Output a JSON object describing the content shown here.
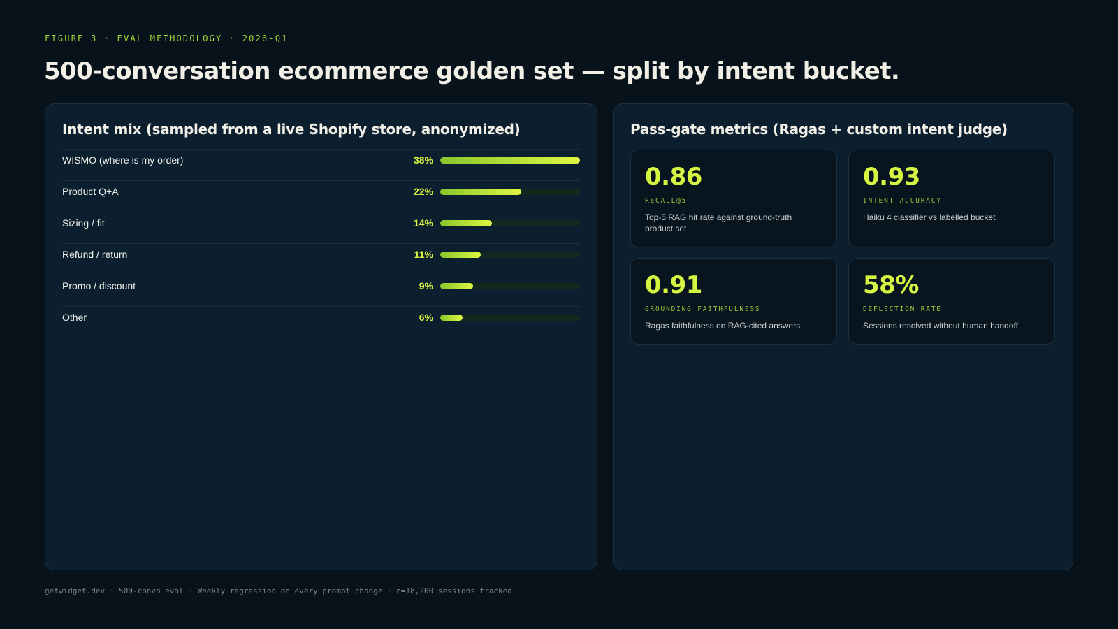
{
  "eyebrow": "FIGURE 3 · EVAL METHODOLOGY · 2026-Q1",
  "headline": "500-conversation ecommerce golden set — split by intent bucket.",
  "intent_panel": {
    "title": "Intent mix (sampled from a live Shopify store, anonymized)",
    "items": [
      {
        "label": "WISMO (where is my order)",
        "pct_text": "38%",
        "share": 0.38
      },
      {
        "label": "Product Q+A",
        "pct_text": "22%",
        "share": 0.22
      },
      {
        "label": "Sizing / fit",
        "pct_text": "14%",
        "share": 0.14
      },
      {
        "label": "Refund / return",
        "pct_text": "11%",
        "share": 0.11
      },
      {
        "label": "Promo / discount",
        "pct_text": "9%",
        "share": 0.09
      },
      {
        "label": "Other",
        "pct_text": "6%",
        "share": 0.06
      }
    ]
  },
  "metrics_panel": {
    "title": "Pass-gate metrics (Ragas + custom intent judge)",
    "cards": [
      {
        "value": "0.86",
        "label": "RECALL@5",
        "description": "Top-5 RAG hit rate against ground-truth product set"
      },
      {
        "value": "0.93",
        "label": "INTENT ACCURACY",
        "description": "Haiku 4 classifier vs labelled bucket"
      },
      {
        "value": "0.91",
        "label": "GROUNDING FAITHFULNESS",
        "description": "Ragas faithfulness on RAG-cited answers"
      },
      {
        "value": "58%",
        "label": "DEFLECTION RATE",
        "description": "Sessions resolved without human handoff"
      }
    ]
  },
  "footer": "getwidget.dev · 500-convo eval · Weekly regression on every prompt change · n=18,200 sessions tracked",
  "colors": {
    "background": "#08121b",
    "panel": "#0c1f2e",
    "accent": "#d6f542",
    "accent_dim": "#93c93a"
  }
}
